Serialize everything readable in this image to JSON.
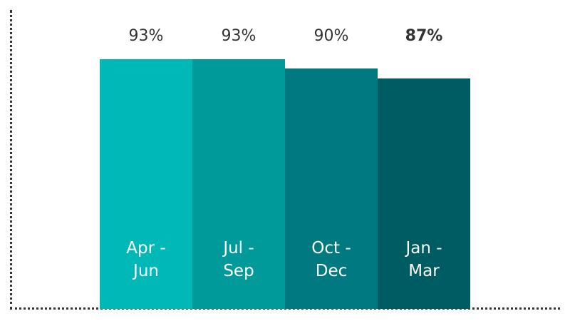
{
  "chart_data": {
    "type": "bar",
    "categories": [
      "Apr - Jun",
      "Jul - Sep",
      "Oct - Dec",
      "Jan - Mar"
    ],
    "values": [
      93,
      93,
      90,
      87
    ],
    "value_labels": [
      "93%",
      "93%",
      "90%",
      "87%"
    ],
    "colors": [
      "#00b8b8",
      "#009a9a",
      "#007a80",
      "#005c63"
    ],
    "bold": [
      false,
      false,
      false,
      true
    ],
    "ylim": [
      15,
      100
    ]
  }
}
